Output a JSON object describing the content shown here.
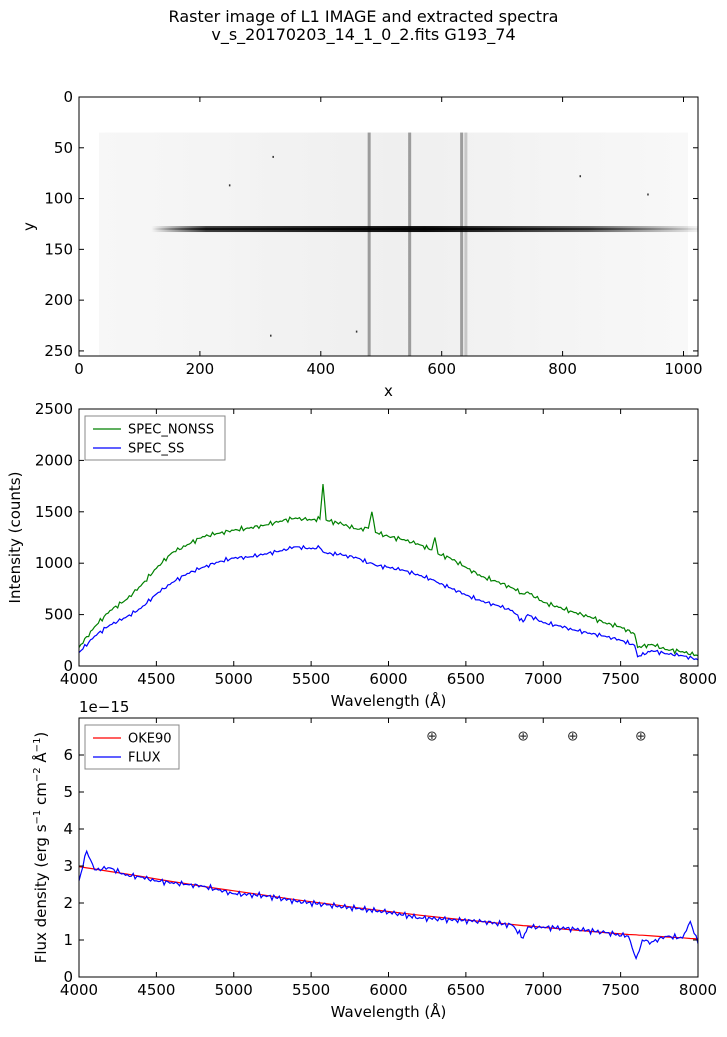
{
  "figure": {
    "title_line1": "Raster image of L1 IMAGE and extracted spectra",
    "title_line2": "v_s_20170203_14_1_0_2.fits   G193_74"
  },
  "chart_data": [
    {
      "type": "heatmap",
      "title": "",
      "xlabel": "x",
      "ylabel": "y",
      "xlim": [
        0,
        1024
      ],
      "ylim": [
        255,
        0
      ],
      "xticks": [
        "0",
        "200",
        "400",
        "600",
        "800",
        "1000"
      ],
      "yticks": [
        "0",
        "50",
        "100",
        "150",
        "200",
        "250"
      ],
      "colormap": "gray_r",
      "features": {
        "spectrum_trace": {
          "y": 130,
          "x_start": 120,
          "x_end": 1024
        },
        "sky_lines_x": [
          480,
          547,
          633,
          640
        ],
        "illuminated_rows": [
          35,
          255
        ]
      }
    },
    {
      "type": "line",
      "xlabel": "Wavelength (Å)",
      "ylabel": "Intensity (counts)",
      "xlim": [
        4000,
        8000
      ],
      "ylim": [
        0,
        2500
      ],
      "xticks": [
        "4000",
        "4500",
        "5000",
        "5500",
        "6000",
        "6500",
        "7000",
        "7500",
        "8000"
      ],
      "yticks": [
        "0",
        "500",
        "1000",
        "1500",
        "2000",
        "2500"
      ],
      "legend_loc": "upper-left",
      "x": [
        4000,
        4100,
        4200,
        4300,
        4400,
        4500,
        4600,
        4700,
        4800,
        4900,
        5000,
        5100,
        5200,
        5300,
        5400,
        5500,
        5557,
        5577,
        5597,
        5700,
        5800,
        5870,
        5893,
        5916,
        6000,
        6100,
        6200,
        6280,
        6300,
        6320,
        6400,
        6500,
        6600,
        6700,
        6800,
        6870,
        6900,
        7000,
        7100,
        7200,
        7300,
        7400,
        7500,
        7590,
        7610,
        7700,
        7800,
        7900,
        8000
      ],
      "series": [
        {
          "name": "SPEC_NONSS",
          "color": "#008000",
          "values": [
            180,
            380,
            540,
            640,
            780,
            950,
            1100,
            1180,
            1260,
            1290,
            1320,
            1340,
            1370,
            1410,
            1440,
            1420,
            1430,
            1770,
            1420,
            1380,
            1330,
            1340,
            1500,
            1300,
            1260,
            1230,
            1180,
            1130,
            1250,
            1090,
            1050,
            960,
            870,
            820,
            760,
            700,
            720,
            620,
            570,
            520,
            480,
            420,
            380,
            310,
            180,
            210,
            160,
            140,
            100
          ]
        },
        {
          "name": "SPEC_SS",
          "color": "#0000ff",
          "values": [
            130,
            290,
            400,
            470,
            560,
            700,
            810,
            900,
            960,
            1010,
            1050,
            1060,
            1090,
            1120,
            1160,
            1140,
            1150,
            1110,
            1100,
            1080,
            1050,
            1000,
            1000,
            980,
            960,
            930,
            880,
            840,
            830,
            810,
            760,
            690,
            630,
            590,
            540,
            430,
            500,
            420,
            390,
            350,
            320,
            290,
            250,
            200,
            90,
            150,
            120,
            100,
            60
          ]
        }
      ]
    },
    {
      "type": "line",
      "xlabel": "Wavelength (Å)",
      "ylabel": "Flux density (erg s⁻¹ cm⁻² Å⁻¹)",
      "ylabel_parts": {
        "pre": "Flux density (erg s",
        "e1": "−1",
        "mid1": " cm",
        "e2": "−2",
        "mid2": " Å",
        "e3": "−1",
        "post": ")"
      },
      "y_offset_label": "1e−15",
      "xlim": [
        4000,
        8000
      ],
      "ylim": [
        0,
        7
      ],
      "xticks": [
        "4000",
        "4500",
        "5000",
        "5500",
        "6000",
        "6500",
        "7000",
        "7500",
        "8000"
      ],
      "yticks": [
        "0",
        "1",
        "2",
        "3",
        "4",
        "5",
        "6"
      ],
      "legend_loc": "upper-left",
      "telluric_marker": "⊕",
      "telluric_x": [
        6280,
        6870,
        7190,
        7630
      ],
      "telluric_y": 6.55,
      "x": [
        4000,
        4050,
        4100,
        4200,
        4300,
        4400,
        4500,
        4600,
        4700,
        4800,
        4900,
        5000,
        5200,
        5400,
        5600,
        5800,
        6000,
        6200,
        6400,
        6600,
        6800,
        6870,
        6900,
        7000,
        7200,
        7400,
        7550,
        7600,
        7620,
        7640,
        7700,
        7800,
        7900,
        7950,
        8000
      ],
      "series": [
        {
          "name": "OKE90",
          "color": "#ff0000",
          "values": [
            2.98,
            2.95,
            2.92,
            2.85,
            2.79,
            2.72,
            2.65,
            2.58,
            2.52,
            2.45,
            2.39,
            2.33,
            2.21,
            2.09,
            1.98,
            1.87,
            1.77,
            1.67,
            1.58,
            1.5,
            1.42,
            1.39,
            1.38,
            1.34,
            1.27,
            1.2,
            1.15,
            1.14,
            1.13,
            1.13,
            1.11,
            1.08,
            1.06,
            1.04,
            1.03
          ]
        },
        {
          "name": "FLUX",
          "color": "#0000ff",
          "values": [
            2.6,
            3.4,
            2.9,
            2.95,
            2.75,
            2.7,
            2.6,
            2.55,
            2.5,
            2.45,
            2.35,
            2.25,
            2.2,
            2.05,
            1.95,
            1.85,
            1.75,
            1.6,
            1.55,
            1.5,
            1.4,
            1.05,
            1.35,
            1.35,
            1.3,
            1.2,
            1.1,
            0.5,
            0.7,
            1.0,
            0.95,
            1.1,
            1.05,
            1.5,
            0.9
          ]
        }
      ]
    }
  ]
}
